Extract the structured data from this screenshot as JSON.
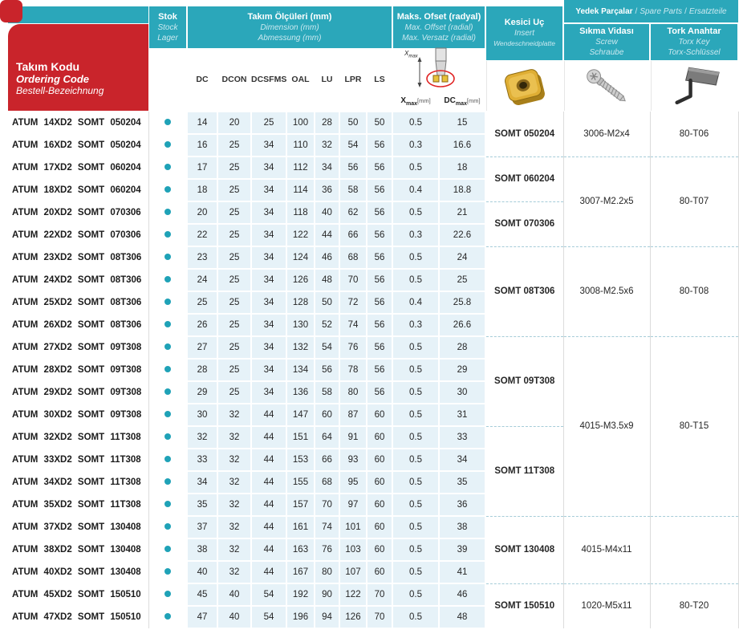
{
  "colors": {
    "teal": "#2BA7BA",
    "teallight": "#CBE9F0",
    "red": "#C9242B",
    "cellblue": "#E6F2F8",
    "dot": "#1FA2B7",
    "dash": "#A5CCD8",
    "border": "#DCDCDC",
    "text": "#262626"
  },
  "header": {
    "ordering_code": {
      "line1": "Takım Kodu",
      "line2": "Ordering Code",
      "line3": "Bestell-Bezeichnung"
    },
    "stock": {
      "line1": "Stok",
      "line2": "Stock",
      "line3": "Lager"
    },
    "dimensions": {
      "line1": "Takım Ölçüleri (mm)",
      "line2": "Dimension (mm)",
      "line3": "Abmessung (mm)"
    },
    "offset": {
      "line1": "Maks. Ofset (radyal)",
      "line2": "Max. Offset (radial)",
      "line3": "Max. Versatz (radial)"
    },
    "insert": {
      "line1": "Kesici Uç",
      "line2": "Insert",
      "line3": "Wendeschneidplatte"
    },
    "spare_parts": {
      "line1": "Yedek Parçalar",
      "line2": "Spare Parts",
      "line3": "Ersatzteile",
      "sep": "/"
    },
    "screw": {
      "line1": "Sıkma Vidası",
      "line2": "Screw",
      "line3": "Schraube"
    },
    "torx": {
      "line1": "Tork Anahtar",
      "line2": "Torx Key",
      "line3": "Torx-Schlüssel"
    },
    "dim_columns": [
      "DC",
      "DCON",
      "DCSFMS",
      "OAL",
      "LU",
      "LPR",
      "LS"
    ],
    "offset_columns": [
      {
        "base": "X",
        "sub": "max",
        "unit": "[mm]"
      },
      {
        "base": "DC",
        "sub": "max",
        "unit": "[mm]"
      }
    ],
    "diagram_label": {
      "base": "X",
      "sub": "max"
    }
  },
  "icons": {
    "stock_dot": "filled-circle",
    "insert_photo": "gold-milling-insert",
    "screw": "torx-clamping-screw",
    "torx_key": "torx-key-with-flag"
  },
  "table": {
    "rows": [
      [
        "ATUM 14XD2 SOMT 050204",
        14,
        20,
        25,
        100,
        28,
        50,
        50,
        0.5,
        15
      ],
      [
        "ATUM 16XD2 SOMT 050204",
        16,
        25,
        34,
        110,
        32,
        54,
        56,
        0.3,
        16.6
      ],
      [
        "ATUM 17XD2 SOMT 060204",
        17,
        25,
        34,
        112,
        34,
        56,
        56,
        0.5,
        18
      ],
      [
        "ATUM 18XD2 SOMT 060204",
        18,
        25,
        34,
        114,
        36,
        58,
        56,
        0.4,
        18.8
      ],
      [
        "ATUM 20XD2 SOMT 070306",
        20,
        25,
        34,
        118,
        40,
        62,
        56,
        0.5,
        21
      ],
      [
        "ATUM 22XD2 SOMT 070306",
        22,
        25,
        34,
        122,
        44,
        66,
        56,
        0.3,
        22.6
      ],
      [
        "ATUM 23XD2 SOMT 08T306",
        23,
        25,
        34,
        124,
        46,
        68,
        56,
        0.5,
        24
      ],
      [
        "ATUM 24XD2 SOMT 08T306",
        24,
        25,
        34,
        126,
        48,
        70,
        56,
        0.5,
        25
      ],
      [
        "ATUM 25XD2 SOMT 08T306",
        25,
        25,
        34,
        128,
        50,
        72,
        56,
        0.4,
        25.8
      ],
      [
        "ATUM 26XD2 SOMT 08T306",
        26,
        25,
        34,
        130,
        52,
        74,
        56,
        0.3,
        26.6
      ],
      [
        "ATUM 27XD2 SOMT 09T308",
        27,
        25,
        34,
        132,
        54,
        76,
        56,
        0.5,
        28
      ],
      [
        "ATUM 28XD2 SOMT 09T308",
        28,
        25,
        34,
        134,
        56,
        78,
        56,
        0.5,
        29
      ],
      [
        "ATUM 29XD2 SOMT 09T308",
        29,
        25,
        34,
        136,
        58,
        80,
        56,
        0.5,
        30
      ],
      [
        "ATUM 30XD2 SOMT 09T308",
        30,
        32,
        44,
        147,
        60,
        87,
        60,
        0.5,
        31
      ],
      [
        "ATUM 32XD2 SOMT 11T308",
        32,
        32,
        44,
        151,
        64,
        91,
        60,
        0.5,
        33
      ],
      [
        "ATUM 33XD2 SOMT 11T308",
        33,
        32,
        44,
        153,
        66,
        93,
        60,
        0.5,
        34
      ],
      [
        "ATUM 34XD2 SOMT 11T308",
        34,
        32,
        44,
        155,
        68,
        95,
        60,
        0.5,
        35
      ],
      [
        "ATUM 35XD2 SOMT 11T308",
        35,
        32,
        44,
        157,
        70,
        97,
        60,
        0.5,
        36
      ],
      [
        "ATUM 37XD2 SOMT 130408",
        37,
        32,
        44,
        161,
        74,
        101,
        60,
        0.5,
        38
      ],
      [
        "ATUM 38XD2 SOMT 130408",
        38,
        32,
        44,
        163,
        76,
        103,
        60,
        0.5,
        39
      ],
      [
        "ATUM 40XD2 SOMT 130408",
        40,
        32,
        44,
        167,
        80,
        107,
        60,
        0.5,
        41
      ],
      [
        "ATUM 45XD2 SOMT 150510",
        45,
        40,
        54,
        192,
        90,
        122,
        70,
        0.5,
        46
      ],
      [
        "ATUM 47XD2 SOMT 150510",
        47,
        40,
        54,
        196,
        94,
        126,
        70,
        0.5,
        48
      ]
    ],
    "insert_groups": [
      {
        "label": "SOMT 050204",
        "span": 2
      },
      {
        "label": "SOMT 060204",
        "span": 2
      },
      {
        "label": "SOMT 070306",
        "span": 2
      },
      {
        "label": "SOMT 08T306",
        "span": 4
      },
      {
        "label": "SOMT 09T308",
        "span": 4
      },
      {
        "label": "SOMT 11T308",
        "span": 4
      },
      {
        "label": "SOMT 130408",
        "span": 3
      },
      {
        "label": "SOMT 150510",
        "span": 2
      }
    ],
    "screw_groups": [
      {
        "label": "3006-M2x4",
        "span": 2
      },
      {
        "label": "3007-M2.2x5",
        "span": 4
      },
      {
        "label": "3008-M2.5x6",
        "span": 4
      },
      {
        "label": "4015-M3.5x9",
        "span": 8
      },
      {
        "label": "4015-M4x11",
        "span": 3
      },
      {
        "label": "1020-M5x11",
        "span": 2
      }
    ],
    "torx_groups": [
      {
        "label": "80-T06",
        "span": 2
      },
      {
        "label": "80-T07",
        "span": 4
      },
      {
        "label": "80-T08",
        "span": 4
      },
      {
        "label": "80-T15",
        "span": 8
      },
      {
        "label": "",
        "span": 3
      },
      {
        "label": "80-T20",
        "span": 2
      }
    ]
  }
}
